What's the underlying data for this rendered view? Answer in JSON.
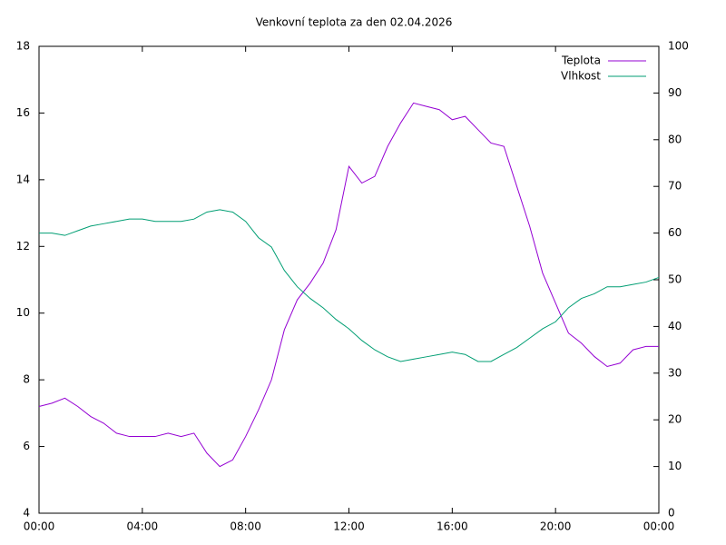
{
  "chart_data": {
    "type": "line",
    "title": "Venkovní teplota za den 02.04.2026",
    "x": [
      0,
      0.5,
      1,
      1.5,
      2,
      2.5,
      3,
      3.5,
      4,
      4.5,
      5,
      5.5,
      6,
      6.5,
      7,
      7.5,
      8,
      8.5,
      9,
      9.5,
      10,
      10.5,
      11,
      11.5,
      12,
      12.5,
      13,
      13.5,
      14,
      14.5,
      15,
      15.5,
      16,
      16.5,
      17,
      17.5,
      18,
      18.5,
      19,
      19.5,
      20,
      20.5,
      21,
      21.5,
      22,
      22.5,
      23,
      23.5,
      24
    ],
    "series": [
      {
        "name": "Teplota",
        "color": "#9400d3",
        "axis": "y",
        "values": [
          7.2,
          7.3,
          7.45,
          7.2,
          6.9,
          6.7,
          6.4,
          6.3,
          6.3,
          6.3,
          6.4,
          6.3,
          6.4,
          5.8,
          5.4,
          5.6,
          6.3,
          7.1,
          8.0,
          9.5,
          10.4,
          10.9,
          11.5,
          12.5,
          14.4,
          13.9,
          14.1,
          15.0,
          15.7,
          16.3,
          16.2,
          16.1,
          15.8,
          15.9,
          15.5,
          15.1,
          15.0,
          13.8,
          12.6,
          11.2,
          10.3,
          9.4,
          9.1,
          8.7,
          8.4,
          8.5,
          8.9,
          9.0,
          9.0
        ]
      },
      {
        "name": "Vlhkost",
        "color": "#009e73",
        "axis": "y2",
        "values": [
          60,
          60,
          59.5,
          60.5,
          61.5,
          62,
          62.5,
          63,
          63,
          62.5,
          62.5,
          62.5,
          63,
          64.5,
          65,
          64.5,
          62.5,
          59,
          57,
          52,
          48.5,
          46,
          44,
          41.5,
          39.5,
          37,
          35,
          33.5,
          32.5,
          33,
          33.5,
          34,
          34.5,
          34,
          32.5,
          32.5,
          34,
          35.5,
          37.5,
          39.5,
          41,
          44,
          46,
          47,
          48.5,
          48.5,
          49,
          49.5,
          50.5
        ]
      }
    ],
    "xlim": [
      0,
      24
    ],
    "xticks": [
      {
        "value": 0,
        "label": "00:00"
      },
      {
        "value": 4,
        "label": "04:00"
      },
      {
        "value": 8,
        "label": "08:00"
      },
      {
        "value": 12,
        "label": "12:00"
      },
      {
        "value": 16,
        "label": "16:00"
      },
      {
        "value": 20,
        "label": "20:00"
      },
      {
        "value": 24,
        "label": "00:00"
      }
    ],
    "ylim": [
      4,
      18
    ],
    "yticks": [
      4,
      6,
      8,
      10,
      12,
      14,
      16,
      18
    ],
    "y2lim": [
      0,
      100
    ],
    "y2ticks": [
      0,
      10,
      20,
      30,
      40,
      50,
      60,
      70,
      80,
      90,
      100
    ],
    "grid": false,
    "legend": "top-right"
  }
}
